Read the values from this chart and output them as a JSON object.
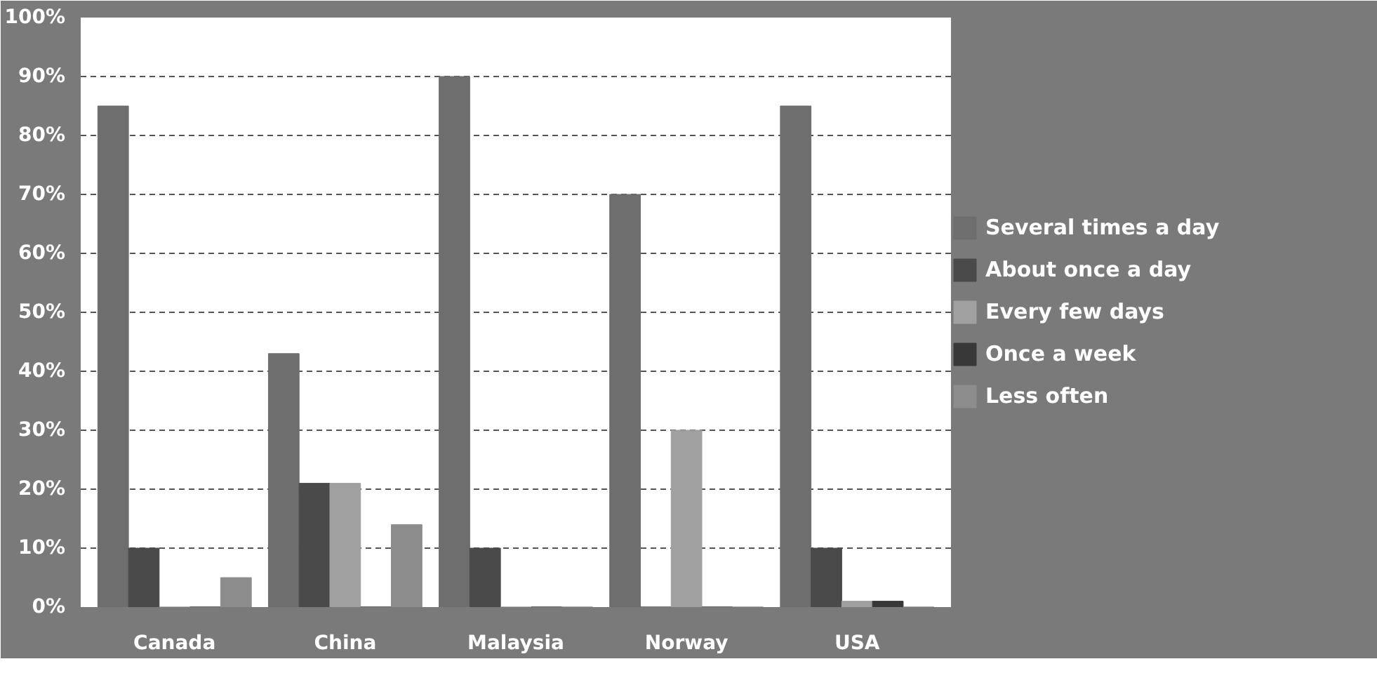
{
  "chart_data": {
    "type": "bar",
    "categories": [
      "Canada",
      "China",
      "Malaysia",
      "Norway",
      "USA"
    ],
    "series": [
      {
        "name": "Several times a day",
        "color": "#6e6e6e",
        "values": [
          85,
          43,
          90,
          70,
          85
        ]
      },
      {
        "name": "About once a day",
        "color": "#4a4a4a",
        "values": [
          10,
          21,
          10,
          0,
          10
        ]
      },
      {
        "name": "Every few days",
        "color": "#a0a0a0",
        "values": [
          0,
          21,
          0,
          30,
          1
        ]
      },
      {
        "name": "Once a week",
        "color": "#383838",
        "values": [
          0,
          0,
          0,
          0,
          1
        ]
      },
      {
        "name": "Less often",
        "color": "#8c8c8c",
        "values": [
          5,
          14,
          0,
          0,
          0
        ]
      }
    ],
    "ylim": [
      0,
      100
    ],
    "yticks": [
      {
        "value": 0,
        "label": "0%"
      },
      {
        "value": 10,
        "label": "10%"
      },
      {
        "value": 20,
        "label": "20%"
      },
      {
        "value": 30,
        "label": "30%"
      },
      {
        "value": 40,
        "label": "40%"
      },
      {
        "value": 50,
        "label": "50%"
      },
      {
        "value": 60,
        "label": "60%"
      },
      {
        "value": 70,
        "label": "70%"
      },
      {
        "value": 80,
        "label": "80%"
      },
      {
        "value": 90,
        "label": "90%"
      },
      {
        "value": 100,
        "label": "100%"
      }
    ],
    "grid": "y",
    "legend": "right"
  }
}
